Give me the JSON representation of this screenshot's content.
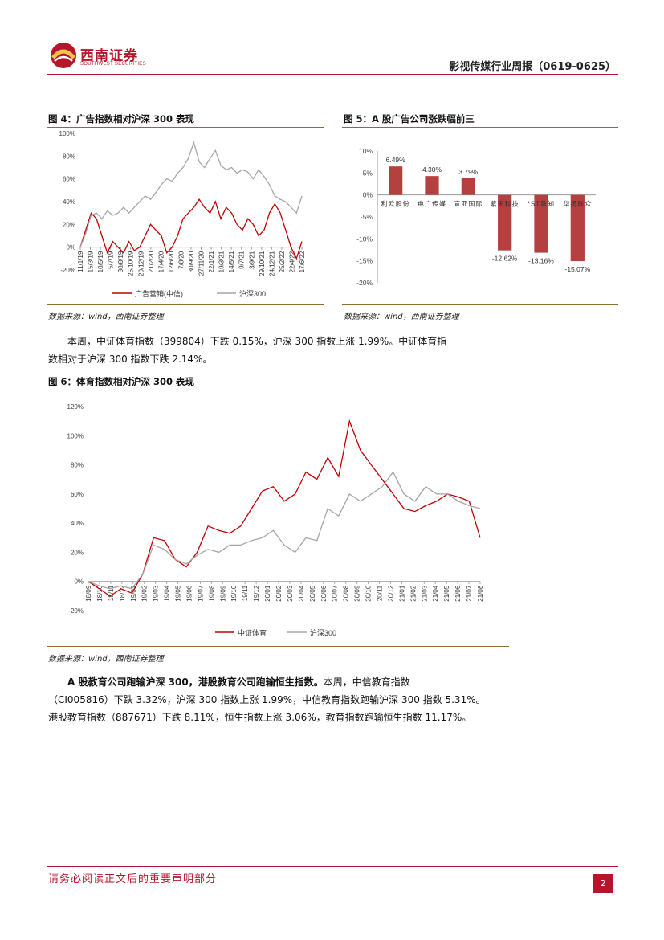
{
  "header": {
    "logo_cn": "西南证券",
    "logo_en": "SOUTHWEST SECURITIES",
    "report_title": "影视传媒行业周报（0619-0625）"
  },
  "fig4": {
    "title": "图 4：广告指数相对沪深 300 表现",
    "source": "数据来源：wind，西南证券整理"
  },
  "fig5": {
    "title": "图 5：A 股广告公司涨跌幅前三",
    "source": "数据来源：wind，西南证券整理"
  },
  "para1": {
    "line1": "本周，中证体育指数（399804）下跌 0.15%，沪深 300 指数上涨 1.99%。中证体育指",
    "line2": "数相对于沪深 300 指数下跌 2.14%。"
  },
  "fig6": {
    "title": "图 6：体育指数相对沪深 300 表现",
    "source": "数据来源：wind，西南证券整理"
  },
  "para2": {
    "bold": "A 股教育公司跑输沪深 300，港股教育公司跑输恒生指数。",
    "line1": "本周，中信教育指数",
    "line2": "（CI005816）下跌 3.32%，沪深 300 指数上涨 1.99%，中信教育指数跑输沪深 300 指数 5.31%。",
    "line3": "港股教育指数（887671）下跌 8.11%，恒生指数上涨 3.06%，教育指数跑输恒生指数 11.17%。"
  },
  "footer": {
    "disclaimer": "请务必阅读正文后的重要声明部分",
    "page": "2"
  },
  "colors": {
    "brand_red": "#b5162b",
    "bar_red": "#b54040",
    "line_gray": "#a6a6a6",
    "line_red": "#c00000"
  },
  "chart_data": [
    {
      "type": "line",
      "title": "图 4：广告指数相对沪深 300 表现",
      "x_tick_labels": [
        "11/1/19",
        "15/3/19",
        "10/5/19",
        "5/7/19",
        "30/8/19",
        "25/10/19",
        "20/12/19",
        "21/2/20",
        "17/4/20",
        "12/6/20",
        "7/8/20",
        "30/9/20",
        "27/11/20",
        "22/1/21",
        "19/3/21",
        "14/5/21",
        "9/7/21",
        "3/9/21",
        "29/10/21",
        "24/12/21",
        "25/2/22",
        "22/4/22",
        "17/6/22"
      ],
      "y_tick_labels": [
        "100%",
        "80%",
        "60%",
        "40%",
        "20%",
        "0%",
        "-20%"
      ],
      "ylim": [
        -20,
        100
      ],
      "legend_position": "bottom",
      "series": [
        {
          "name": "广告营销(中信)",
          "color": "#c00000",
          "values": [
            0,
            15,
            30,
            25,
            10,
            -5,
            5,
            0,
            -5,
            5,
            -3,
            0,
            10,
            20,
            15,
            10,
            -5,
            0,
            10,
            25,
            30,
            35,
            42,
            35,
            30,
            40,
            25,
            35,
            30,
            20,
            15,
            25,
            20,
            10,
            15,
            30,
            38,
            30,
            15,
            0,
            -10,
            5
          ]
        },
        {
          "name": "沪深300",
          "color": "#a6a6a6",
          "values": [
            0,
            12,
            28,
            30,
            25,
            32,
            28,
            30,
            35,
            30,
            35,
            40,
            45,
            42,
            48,
            55,
            60,
            58,
            65,
            70,
            78,
            92,
            75,
            70,
            78,
            85,
            72,
            68,
            70,
            65,
            68,
            66,
            60,
            68,
            62,
            55,
            45,
            42,
            40,
            35,
            30,
            45
          ]
        }
      ]
    },
    {
      "type": "bar",
      "title": "图 5：A 股广告公司涨跌幅前三",
      "categories": [
        "利欧股份",
        "电广传媒",
        "宣亚国际",
        "紫天科技",
        "*ST数知",
        "华扬联众"
      ],
      "values": [
        6.49,
        4.3,
        3.79,
        -12.62,
        -13.16,
        -15.07
      ],
      "data_labels": [
        "6.49%",
        "4.30%",
        "3.79%",
        "-12.62%",
        "-13.16%",
        "-15.07%"
      ],
      "y_tick_labels": [
        "10%",
        "5%",
        "0%",
        "-5%",
        "-10%",
        "-15%",
        "-20%"
      ],
      "ylim": [
        -20,
        10
      ],
      "color": "#b54040"
    },
    {
      "type": "line",
      "title": "图 6：体育指数相对沪深 300 表现",
      "x_tick_labels": [
        "18/09",
        "18/10",
        "18/11",
        "18/12",
        "19/01",
        "19/02",
        "19/03",
        "19/04",
        "19/05",
        "19/06",
        "19/07",
        "19/08",
        "19/09",
        "19/10",
        "19/11",
        "19/12",
        "20/01",
        "20/02",
        "20/03",
        "20/04",
        "20/05",
        "20/06",
        "20/07",
        "20/08",
        "20/09",
        "20/10",
        "20/11",
        "20/12",
        "21/01",
        "21/02",
        "21/03",
        "21/04",
        "21/05",
        "21/06",
        "21/07",
        "21/08"
      ],
      "y_tick_labels": [
        "120%",
        "100%",
        "80%",
        "60%",
        "40%",
        "20%",
        "0%",
        "-20%"
      ],
      "ylim": [
        -20,
        120
      ],
      "legend_position": "bottom",
      "series": [
        {
          "name": "中证体育",
          "color": "#c00000",
          "values": [
            0,
            -5,
            -10,
            -5,
            -8,
            5,
            30,
            28,
            15,
            10,
            20,
            38,
            35,
            33,
            38,
            50,
            62,
            65,
            55,
            60,
            75,
            70,
            85,
            72,
            110,
            90,
            80,
            70,
            60,
            50,
            48,
            52,
            55,
            60,
            58,
            55,
            30
          ]
        },
        {
          "name": "沪深300",
          "color": "#a6a6a6",
          "values": [
            0,
            -3,
            -5,
            -3,
            -5,
            5,
            25,
            22,
            15,
            12,
            18,
            22,
            20,
            25,
            25,
            28,
            30,
            35,
            25,
            20,
            30,
            28,
            50,
            45,
            60,
            55,
            60,
            65,
            75,
            60,
            55,
            65,
            60,
            60,
            55,
            52,
            50
          ]
        }
      ]
    }
  ]
}
